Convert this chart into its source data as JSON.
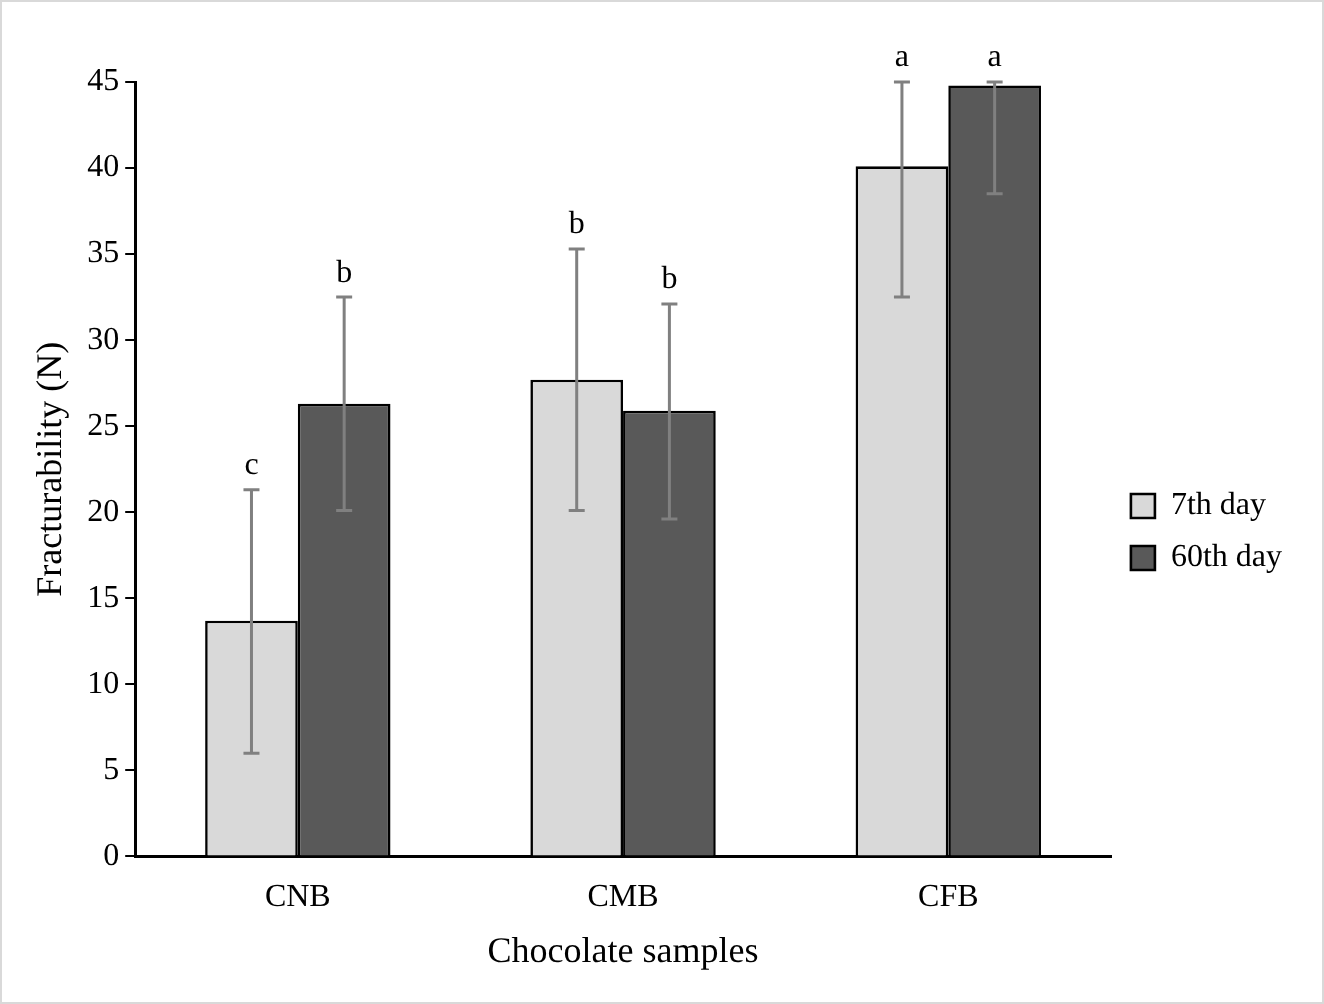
{
  "chart_data": {
    "type": "bar",
    "xlabel": "Chocolate samples",
    "ylabel": "Fracturability (N)",
    "categories": [
      "CNB",
      "CMB",
      "CFB"
    ],
    "series": [
      {
        "name": "7th day",
        "color": "#d9d9d9",
        "values": [
          13.7,
          27.7,
          40.1
        ],
        "errors": [
          [
            6.0,
            21.3
          ],
          [
            20.1,
            35.3
          ],
          [
            32.5,
            45
          ]
        ]
      },
      {
        "name": "60th day",
        "color": "#595959",
        "values": [
          26.3,
          25.9,
          44.8
        ],
        "errors": [
          [
            20.1,
            32.5
          ],
          [
            19.6,
            32.1
          ],
          [
            38.5,
            45
          ]
        ]
      }
    ],
    "annotations": [
      "c",
      "b",
      "b",
      "b",
      "a",
      "a"
    ],
    "ylim": [
      0,
      45
    ],
    "yticks": [
      0,
      5,
      10,
      15,
      20,
      25,
      30,
      35,
      40,
      45
    ],
    "grid": false,
    "legend": "right"
  }
}
